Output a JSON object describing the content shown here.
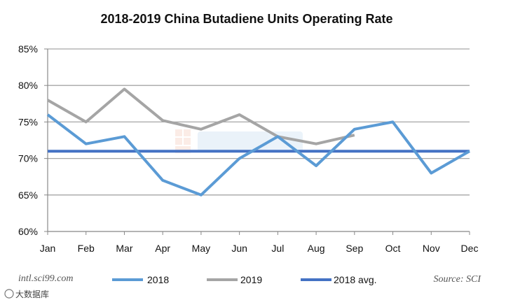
{
  "chart_data": {
    "type": "line",
    "title": "2018-2019 China Butadiene Units Operating Rate",
    "categories": [
      "Jan",
      "Feb",
      "Mar",
      "Apr",
      "May",
      "Jun",
      "Jul",
      "Aug",
      "Sep",
      "Oct",
      "Nov",
      "Dec"
    ],
    "ylim": [
      60,
      85
    ],
    "yticks": [
      "60%",
      "65%",
      "70%",
      "75%",
      "80%",
      "85%"
    ],
    "grid": true,
    "legend_position": "bottom",
    "series": [
      {
        "name": "2018",
        "color": "#5B9BD5",
        "values": [
          76,
          72,
          73,
          67,
          65,
          70,
          73,
          69,
          74,
          75,
          68,
          71
        ]
      },
      {
        "name": "2019",
        "color": "#A5A5A5",
        "values": [
          78,
          75,
          79.5,
          75.2,
          74,
          76,
          73,
          72,
          73.2,
          null,
          null,
          null
        ]
      },
      {
        "name": "2018 avg.",
        "color": "#4472C4",
        "values": [
          71,
          71,
          71,
          71,
          71,
          71,
          71,
          71,
          71,
          71,
          71,
          71
        ]
      }
    ]
  },
  "footer": {
    "website": "intl.sci99.com",
    "source": "Source: SCI",
    "watermark_text": "大数据库"
  }
}
